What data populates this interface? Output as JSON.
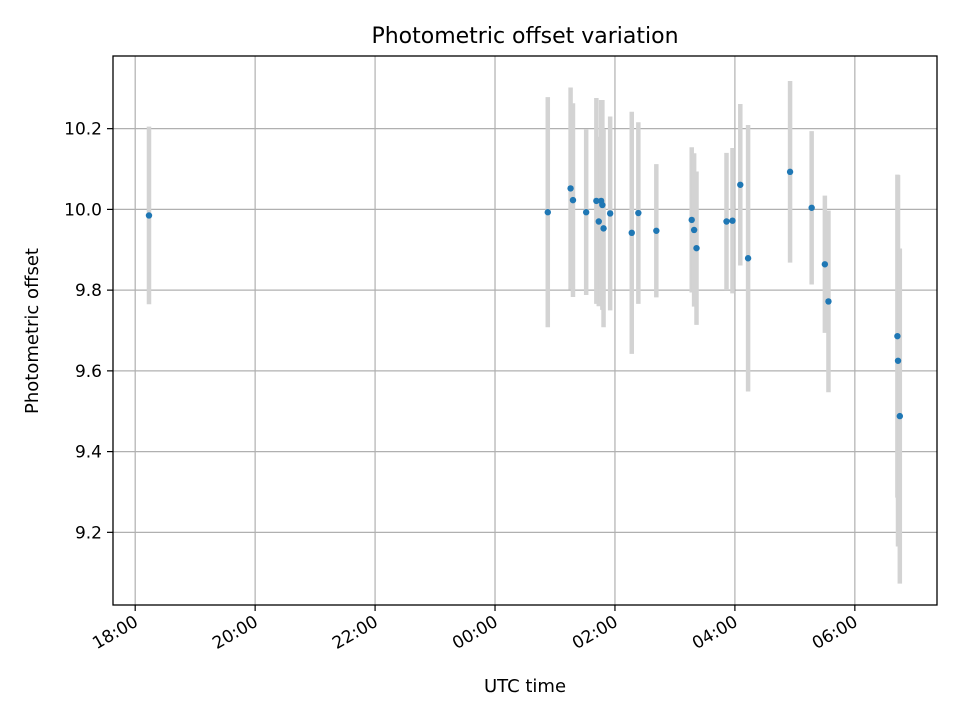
{
  "chart_data": {
    "type": "scatter",
    "title": "Photometric offset variation",
    "xlabel": "UTC time",
    "ylabel": "Photometric offset",
    "x_tick_labels": [
      "18:00",
      "20:00",
      "22:00",
      "00:00",
      "02:00",
      "04:00",
      "06:00"
    ],
    "x_tick_hours": [
      -6,
      -4,
      -2,
      0,
      2,
      4,
      6
    ],
    "xlim_hours": [
      -6.37,
      7.37
    ],
    "y_ticks": [
      9.2,
      9.4,
      9.6,
      9.8,
      10.0,
      10.2
    ],
    "y_tick_labels": [
      "9.2",
      "9.4",
      "9.6",
      "9.8",
      "10.0",
      "10.2"
    ],
    "ylim": [
      9.02,
      10.38
    ],
    "grid": true,
    "marker_color": "#1f77b4",
    "errorbar_color": "#d3d3d3",
    "series": [
      {
        "points": [
          {
            "x_hours": -5.77,
            "y": 9.985,
            "err": 0.22
          },
          {
            "x_hours": 0.88,
            "y": 9.993,
            "err": 0.285
          },
          {
            "x_hours": 1.26,
            "y": 10.052,
            "err": 0.25
          },
          {
            "x_hours": 1.3,
            "y": 10.023,
            "err": 0.24
          },
          {
            "x_hours": 1.52,
            "y": 9.993,
            "err": 0.205
          },
          {
            "x_hours": 1.69,
            "y": 10.021,
            "err": 0.255
          },
          {
            "x_hours": 1.73,
            "y": 9.97,
            "err": 0.21
          },
          {
            "x_hours": 1.77,
            "y": 10.021,
            "err": 0.25
          },
          {
            "x_hours": 1.79,
            "y": 10.011,
            "err": 0.26
          },
          {
            "x_hours": 1.81,
            "y": 9.953,
            "err": 0.245
          },
          {
            "x_hours": 1.92,
            "y": 9.99,
            "err": 0.24
          },
          {
            "x_hours": 2.28,
            "y": 9.942,
            "err": 0.3
          },
          {
            "x_hours": 2.39,
            "y": 9.991,
            "err": 0.225
          },
          {
            "x_hours": 2.69,
            "y": 9.947,
            "err": 0.165
          },
          {
            "x_hours": 3.28,
            "y": 9.974,
            "err": 0.18
          },
          {
            "x_hours": 3.32,
            "y": 9.949,
            "err": 0.19
          },
          {
            "x_hours": 3.36,
            "y": 9.904,
            "err": 0.19
          },
          {
            "x_hours": 3.86,
            "y": 9.97,
            "err": 0.17
          },
          {
            "x_hours": 3.96,
            "y": 9.972,
            "err": 0.18
          },
          {
            "x_hours": 4.09,
            "y": 10.061,
            "err": 0.2
          },
          {
            "x_hours": 4.22,
            "y": 9.879,
            "err": 0.33
          },
          {
            "x_hours": 4.92,
            "y": 10.093,
            "err": 0.225
          },
          {
            "x_hours": 5.28,
            "y": 10.004,
            "err": 0.19
          },
          {
            "x_hours": 5.5,
            "y": 9.864,
            "err": 0.17
          },
          {
            "x_hours": 5.56,
            "y": 9.772,
            "err": 0.225
          },
          {
            "x_hours": 6.71,
            "y": 9.686,
            "err": 0.4
          },
          {
            "x_hours": 6.72,
            "y": 9.625,
            "err": 0.46
          },
          {
            "x_hours": 6.75,
            "y": 9.488,
            "err": 0.415
          }
        ]
      }
    ]
  }
}
